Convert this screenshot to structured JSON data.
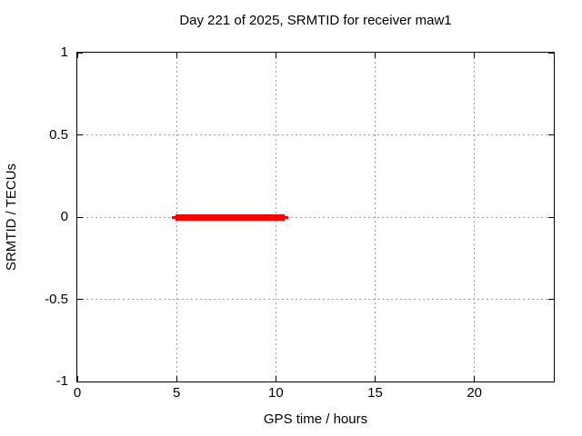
{
  "chart_data": {
    "type": "line",
    "title": "Day 221 of 2025, SRMTID for receiver maw1",
    "xlabel": "GPS time / hours",
    "ylabel": "SRMTID / TECUs",
    "xlim": [
      0,
      24
    ],
    "ylim": [
      -1,
      1
    ],
    "x_ticks": [
      {
        "value": 0,
        "label": "0"
      },
      {
        "value": 5,
        "label": "5"
      },
      {
        "value": 10,
        "label": "10"
      },
      {
        "value": 15,
        "label": "15"
      },
      {
        "value": 20,
        "label": "20"
      }
    ],
    "y_ticks": [
      {
        "value": 1,
        "label": "1"
      },
      {
        "value": 0.5,
        "label": "0.5"
      },
      {
        "value": 0,
        "label": "0"
      },
      {
        "value": -0.5,
        "label": "-0.5"
      },
      {
        "value": -1,
        "label": "-1"
      }
    ],
    "grid": true,
    "legend": null,
    "series": [
      {
        "name": "SRMTID",
        "color": "#ff0000",
        "segments": [
          {
            "x_start": 4.85,
            "x_end": 10.55,
            "y": 0
          }
        ]
      }
    ]
  },
  "colors": {
    "background": "#ffffff",
    "axis": "#000000",
    "grid": "#a0a0a0",
    "text": "#000000",
    "series": "#ff0000"
  }
}
